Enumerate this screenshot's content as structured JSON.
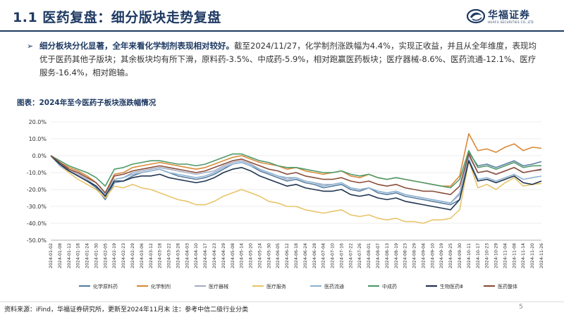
{
  "header": {
    "title": "1.1 医药复盘：细分版块走势复盘",
    "logo_cn": "华福证券",
    "logo_en": "HUAFU SECURITIES CO.,LTD"
  },
  "summary": {
    "bullet_bold": "细分板块分化显著，全年来看化学制剂表现相对较好。",
    "bullet_rest": "截至2024/11/27，化学制剂涨跌幅为4.4%，实现正收益，并且从全年维度，表现均优于医药其他子版块；其余板块均有所下滑，原料药-3.5%、中成药-5.9%，相对跑赢医药板块；医疗器械-8.6%、医药流通-12.1%、医疗服务-16.4%，相对跑输。"
  },
  "chart_title": "图表：2024年至今医药子板块涨跌幅情况",
  "footer": {
    "source": "资料来源：iFind，华福证券研究所，更新至2024年11月末 注：参考中信二级行业分类",
    "page": "5"
  },
  "chart_data": {
    "type": "line",
    "ylim": [
      -50,
      20
    ],
    "yticks": [
      "20.0%",
      "10.0%",
      "0.0%",
      "-10.0%",
      "-20.0%",
      "-30.0%",
      "-40.0%",
      "-50.0%"
    ],
    "x_labels": [
      "2024-01-02",
      "2024-01-08",
      "2024-01-12",
      "2024-01-18",
      "2024-01-24",
      "2024-01-30",
      "2024-02-05",
      "2024-02-19",
      "2024-02-23",
      "2024-02-29",
      "2024-03-06",
      "2024-03-12",
      "2024-03-18",
      "2024-03-22",
      "2024-03-28",
      "2024-04-03",
      "2024-04-10",
      "2024-04-17",
      "2024-04-23",
      "2024-04-29",
      "2024-05-08",
      "2024-05-14",
      "2024-05-20",
      "2024-05-24",
      "2024-05-30",
      "2024-06-05",
      "2024-06-12",
      "2024-06-18",
      "2024-06-24",
      "2024-06-28",
      "2024-07-04",
      "2024-07-10",
      "2024-07-16",
      "2024-07-22",
      "2024-07-26",
      "2024-08-01",
      "2024-08-07",
      "2024-08-13",
      "2024-08-19",
      "2024-08-23",
      "2024-08-29",
      "2024-09-04",
      "2024-09-10",
      "2024-09-19",
      "2024-09-25",
      "2024-09-30",
      "2024-10-11",
      "2024-10-17",
      "2024-10-23",
      "2024-10-29",
      "2024-11-04",
      "2024-11-08",
      "2024-11-14",
      "2024-11-20",
      "2024-11-26"
    ],
    "series": [
      {
        "name": "化学原料药",
        "color": "#5a7fa3",
        "values": [
          0,
          -5,
          -9,
          -12,
          -15,
          -19,
          -26,
          -16,
          -15,
          -12,
          -10,
          -9,
          -8,
          -10,
          -12,
          -13,
          -14,
          -13,
          -11,
          -8,
          -5,
          -4,
          -6,
          -9,
          -11,
          -13,
          -15,
          -14,
          -16,
          -17,
          -19,
          -18,
          -17,
          -20,
          -21,
          -19,
          -22,
          -23,
          -22,
          -24,
          -25,
          -26,
          -27,
          -28,
          -29,
          -26,
          2,
          -6,
          -5,
          -7,
          -5,
          -3,
          -6,
          -5,
          -3.5
        ]
      },
      {
        "name": "化学制剂",
        "color": "#d98a3a",
        "values": [
          0,
          -4,
          -7,
          -9,
          -12,
          -16,
          -22,
          -11,
          -10,
          -7,
          -6,
          -5,
          -4,
          -5,
          -6,
          -7,
          -8,
          -7,
          -5,
          -3,
          -1,
          0,
          -2,
          -4,
          -5,
          -6,
          -8,
          -7,
          -9,
          -10,
          -11,
          -10,
          -9,
          -12,
          -13,
          -11,
          -13,
          -14,
          -13,
          -14,
          -15,
          -16,
          -17,
          -18,
          -18,
          -12,
          13,
          3,
          4,
          2,
          5,
          7,
          3,
          5,
          4.4
        ]
      },
      {
        "name": "医疗器械",
        "color": "#a6adc4",
        "values": [
          0,
          -5,
          -8,
          -11,
          -14,
          -18,
          -24,
          -14,
          -13,
          -10,
          -9,
          -8,
          -7,
          -8,
          -9,
          -10,
          -11,
          -10,
          -9,
          -6,
          -4,
          -3,
          -5,
          -8,
          -10,
          -12,
          -14,
          -13,
          -15,
          -16,
          -17,
          -17,
          -16,
          -19,
          -20,
          -19,
          -21,
          -22,
          -21,
          -23,
          -24,
          -25,
          -26,
          -27,
          -28,
          -22,
          0,
          -10,
          -9,
          -11,
          -9,
          -7,
          -10,
          -9,
          -8.6
        ]
      },
      {
        "name": "医疗服务",
        "color": "#e8c56a",
        "values": [
          0,
          -6,
          -10,
          -14,
          -17,
          -20,
          -25,
          -18,
          -19,
          -17,
          -19,
          -20,
          -22,
          -24,
          -26,
          -27,
          -29,
          -29,
          -27,
          -24,
          -22,
          -20,
          -22,
          -24,
          -27,
          -28,
          -30,
          -30,
          -32,
          -33,
          -34,
          -33,
          -32,
          -35,
          -36,
          -35,
          -37,
          -38,
          -37,
          -39,
          -39,
          -40,
          -38,
          -38,
          -37,
          -32,
          -3,
          -19,
          -17,
          -20,
          -16,
          -13,
          -18,
          -17,
          -16.4
        ]
      },
      {
        "name": "医药流通",
        "color": "#8fb4d2",
        "values": [
          0,
          -6,
          -9,
          -12,
          -15,
          -18,
          -23,
          -14,
          -13,
          -11,
          -10,
          -9,
          -8,
          -10,
          -11,
          -12,
          -13,
          -12,
          -10,
          -7,
          -5,
          -4,
          -6,
          -8,
          -10,
          -12,
          -13,
          -13,
          -15,
          -16,
          -18,
          -17,
          -16,
          -19,
          -20,
          -19,
          -21,
          -22,
          -21,
          -23,
          -24,
          -25,
          -26,
          -27,
          -28,
          -23,
          -2,
          -14,
          -13,
          -15,
          -13,
          -11,
          -14,
          -13,
          -12.1
        ]
      },
      {
        "name": "中成药",
        "color": "#4f9a6a",
        "values": [
          0,
          -3,
          -6,
          -8,
          -10,
          -13,
          -18,
          -8,
          -7,
          -5,
          -4,
          -3,
          -3,
          -4,
          -5,
          -5,
          -6,
          -5,
          -3,
          -1,
          1,
          1,
          -1,
          -3,
          -4,
          -6,
          -7,
          -7,
          -8,
          -9,
          -10,
          -10,
          -9,
          -11,
          -12,
          -11,
          -13,
          -14,
          -13,
          -14,
          -15,
          -16,
          -17,
          -18,
          -19,
          -14,
          3,
          -7,
          -6,
          -8,
          -6,
          -4,
          -7,
          -6,
          -5.9
        ]
      },
      {
        "name": "生物医药Ⅲ",
        "color": "#1f3550",
        "values": [
          0,
          -5,
          -9,
          -12,
          -15,
          -18,
          -24,
          -15,
          -15,
          -13,
          -12,
          -12,
          -11,
          -13,
          -14,
          -15,
          -16,
          -15,
          -13,
          -10,
          -8,
          -7,
          -9,
          -12,
          -14,
          -16,
          -18,
          -17,
          -19,
          -20,
          -21,
          -21,
          -20,
          -23,
          -24,
          -23,
          -25,
          -26,
          -25,
          -27,
          -28,
          -29,
          -30,
          -31,
          -32,
          -26,
          -3,
          -15,
          -14,
          -16,
          -14,
          -12,
          -16,
          -17,
          -15
        ]
      },
      {
        "name": "医药整体",
        "color": "#8a4e3a",
        "values": [
          0,
          -4,
          -8,
          -10,
          -13,
          -16,
          -22,
          -12,
          -11,
          -9,
          -8,
          -7,
          -6,
          -7,
          -8,
          -9,
          -10,
          -9,
          -7,
          -5,
          -3,
          -2,
          -4,
          -6,
          -8,
          -9,
          -11,
          -10,
          -12,
          -13,
          -14,
          -14,
          -13,
          -15,
          -16,
          -15,
          -17,
          -18,
          -17,
          -19,
          -20,
          -21,
          -21,
          -22,
          -23,
          -18,
          1,
          -10,
          -9,
          -11,
          -9,
          -7,
          -10,
          -9,
          -8
        ]
      }
    ]
  }
}
